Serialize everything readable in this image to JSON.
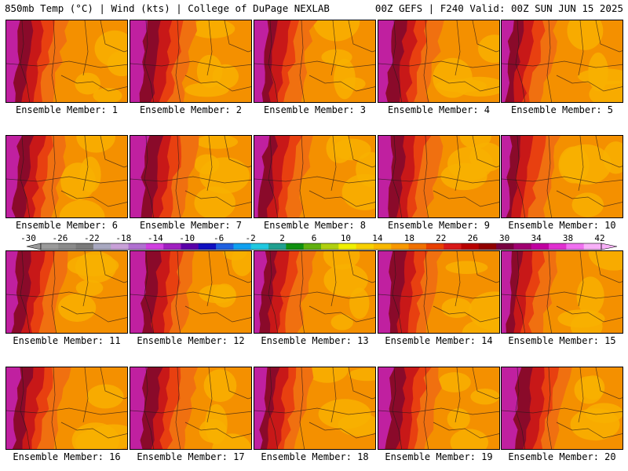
{
  "header": {
    "left": "850mb Temp (°C) | Wind (kts) | College of DuPage NEXLAB",
    "right": "00Z GEFS | F240 Valid: 00Z SUN JUN 15 2025"
  },
  "panels": [
    {
      "label": "Ensemble Member: 1"
    },
    {
      "label": "Ensemble Member: 2"
    },
    {
      "label": "Ensemble Member: 3"
    },
    {
      "label": "Ensemble Member: 4"
    },
    {
      "label": "Ensemble Member: 5"
    },
    {
      "label": "Ensemble Member: 6"
    },
    {
      "label": "Ensemble Member: 7"
    },
    {
      "label": "Ensemble Member: 8"
    },
    {
      "label": "Ensemble Member: 9"
    },
    {
      "label": "Ensemble Member: 10"
    },
    {
      "label": "Ensemble Member: 11"
    },
    {
      "label": "Ensemble Member: 12"
    },
    {
      "label": "Ensemble Member: 13"
    },
    {
      "label": "Ensemble Member: 14"
    },
    {
      "label": "Ensemble Member: 15"
    },
    {
      "label": "Ensemble Member: 16"
    },
    {
      "label": "Ensemble Member: 17"
    },
    {
      "label": "Ensemble Member: 18"
    },
    {
      "label": "Ensemble Member: 19"
    },
    {
      "label": "Ensemble Member: 20"
    }
  ],
  "colorbar": {
    "ticks": [
      "-30",
      "-26",
      "-22",
      "-18",
      "-14",
      "-10",
      "-6",
      "-2",
      "2",
      "6",
      "10",
      "14",
      "18",
      "22",
      "26",
      "30",
      "34",
      "38",
      "42"
    ],
    "colors": [
      "#9a9a9a",
      "#8a8a8a",
      "#7a7a7a",
      "#a8a8c0",
      "#c8a0d8",
      "#b070d0",
      "#d040e0",
      "#a020c0",
      "#5a00a8",
      "#1010c0",
      "#2060e0",
      "#10a0f0",
      "#20c8e0",
      "#20a090",
      "#109010",
      "#60b010",
      "#b0d010",
      "#f0f000",
      "#f8d000",
      "#f8b800",
      "#f89800",
      "#f07000",
      "#e84000",
      "#d81818",
      "#b80000",
      "#900000",
      "#780040",
      "#a00070",
      "#c000a0",
      "#e030d0",
      "#f070f0",
      "#f8b0f8"
    ],
    "palette": {
      "magenta": "#c020a0",
      "dark_red": "#8a0a2a",
      "red": "#c81818",
      "red_orange": "#e84010",
      "orange": "#f07010",
      "amber": "#f49000",
      "yellow_orange": "#f8b000"
    }
  }
}
